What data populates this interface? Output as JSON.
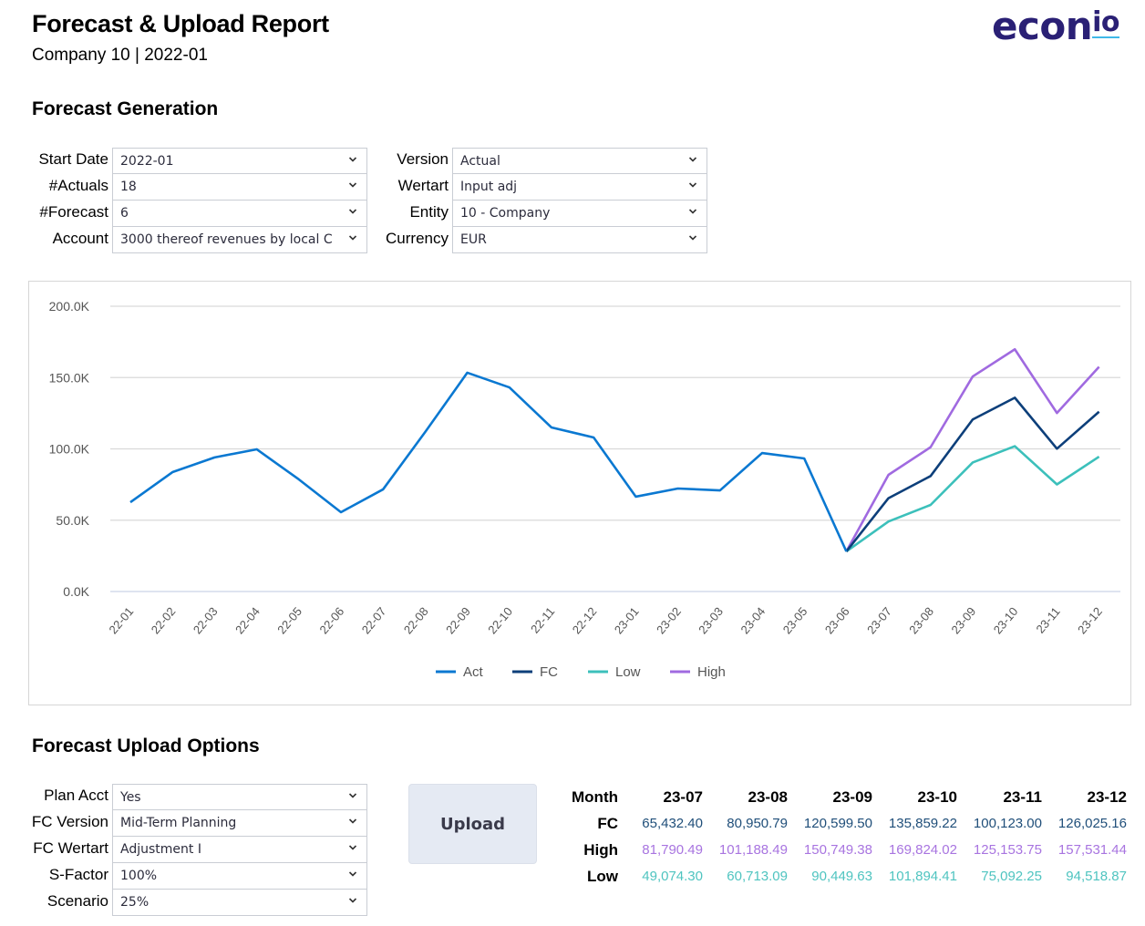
{
  "header": {
    "title": "Forecast & Upload Report",
    "subtitle": "Company 10 | 2022-01",
    "logo_main": "econ",
    "logo_suffix": "io"
  },
  "colors": {
    "act": "#0a78d1",
    "fc": "#0d3f7a",
    "low": "#3cc0bb",
    "high": "#a06ae0",
    "logo": "#2a2075",
    "logo_accent": "#3fb8e8",
    "fc_text": "#1f4e79",
    "high_text": "#a874e0",
    "low_text": "#4fc4c0"
  },
  "generation": {
    "title": "Forecast Generation",
    "left_fields": [
      {
        "label": "Start Date",
        "value": "2022-01"
      },
      {
        "label": "#Actuals",
        "value": "18"
      },
      {
        "label": "#Forecast",
        "value": "6"
      },
      {
        "label": "Account",
        "value": "3000 thereof revenues by local C"
      }
    ],
    "right_fields": [
      {
        "label": "Version",
        "value": "Actual"
      },
      {
        "label": "Wertart",
        "value": "Input adj"
      },
      {
        "label": "Entity",
        "value": "10 - Company"
      },
      {
        "label": "Currency",
        "value": "EUR"
      }
    ]
  },
  "chart_data": {
    "type": "line",
    "title": "",
    "xlabel": "",
    "ylabel": "",
    "ylim": [
      0,
      200000
    ],
    "yticks": [
      0,
      50000,
      100000,
      150000,
      200000
    ],
    "ytick_labels": [
      "0.0K",
      "50.0K",
      "100.0K",
      "150.0K",
      "200.0K"
    ],
    "grid": true,
    "legend_position": "bottom",
    "categories": [
      "22-01",
      "22-02",
      "22-03",
      "22-04",
      "22-05",
      "22-06",
      "22-07",
      "22-08",
      "22-09",
      "22-10",
      "22-11",
      "22-12",
      "23-01",
      "23-02",
      "23-03",
      "23-04",
      "23-05",
      "23-06",
      "23-07",
      "23-08",
      "23-09",
      "23-10",
      "23-11",
      "23-12"
    ],
    "series": [
      {
        "name": "Act",
        "color": "#0a78d1",
        "values": [
          62600,
          83700,
          94000,
          99700,
          78600,
          55600,
          71600,
          111800,
          153400,
          143100,
          115000,
          108000,
          66500,
          72200,
          70900,
          97100,
          93300,
          28100,
          null,
          null,
          null,
          null,
          null,
          null
        ]
      },
      {
        "name": "FC",
        "color": "#0d3f7a",
        "values": [
          null,
          null,
          null,
          null,
          null,
          null,
          null,
          null,
          null,
          null,
          null,
          null,
          null,
          null,
          null,
          null,
          null,
          28100,
          65432.4,
          80950.79,
          120599.5,
          135859.22,
          100123.0,
          126025.16
        ]
      },
      {
        "name": "Low",
        "color": "#3cc0bb",
        "values": [
          null,
          null,
          null,
          null,
          null,
          null,
          null,
          null,
          null,
          null,
          null,
          null,
          null,
          null,
          null,
          null,
          null,
          28100,
          49074.3,
          60713.09,
          90449.63,
          101894.41,
          75092.25,
          94518.87
        ]
      },
      {
        "name": "High",
        "color": "#a06ae0",
        "values": [
          null,
          null,
          null,
          null,
          null,
          null,
          null,
          null,
          null,
          null,
          null,
          null,
          null,
          null,
          null,
          null,
          null,
          28100,
          81790.49,
          101188.49,
          150749.38,
          169824.02,
          125153.75,
          157531.44
        ]
      }
    ]
  },
  "upload": {
    "title": "Forecast Upload Options",
    "fields": [
      {
        "label": "Plan Acct",
        "value": "Yes"
      },
      {
        "label": "FC Version",
        "value": "Mid-Term Planning"
      },
      {
        "label": "FC Wertart",
        "value": "Adjustment I"
      },
      {
        "label": "S-Factor",
        "value": "100%"
      },
      {
        "label": "Scenario",
        "value": "25%"
      }
    ],
    "button_label": "Upload"
  },
  "table": {
    "header_label": "Month",
    "months": [
      "23-07",
      "23-08",
      "23-09",
      "23-10",
      "23-11",
      "23-12"
    ],
    "rows": [
      {
        "label": "FC",
        "values": [
          "65,432.40",
          "80,950.79",
          "120,599.50",
          "135,859.22",
          "100,123.00",
          "126,025.16"
        ]
      },
      {
        "label": "High",
        "values": [
          "81,790.49",
          "101,188.49",
          "150,749.38",
          "169,824.02",
          "125,153.75",
          "157,531.44"
        ]
      },
      {
        "label": "Low",
        "values": [
          "49,074.30",
          "60,713.09",
          "90,449.63",
          "101,894.41",
          "75,092.25",
          "94,518.87"
        ]
      }
    ]
  }
}
